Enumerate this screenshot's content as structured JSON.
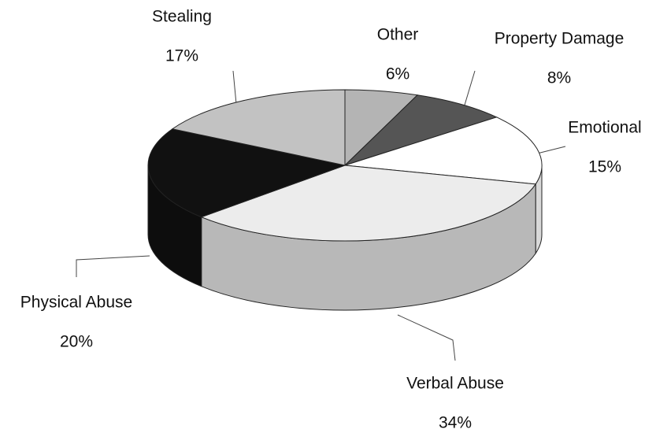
{
  "chart_data": {
    "type": "pie",
    "categories": [
      "Other",
      "Property Damage",
      "Emotional",
      "Verbal Abuse",
      "Physical Abuse",
      "Stealing"
    ],
    "values": [
      6,
      8,
      15,
      34,
      20,
      17
    ],
    "value_labels": [
      "6%",
      "8%",
      "15%",
      "34%",
      "20%",
      "17%"
    ],
    "colors": [
      "#b4b4b4",
      "#555555",
      "#ffffff",
      "#ececec",
      "#111111",
      "#c2c2c2"
    ]
  }
}
